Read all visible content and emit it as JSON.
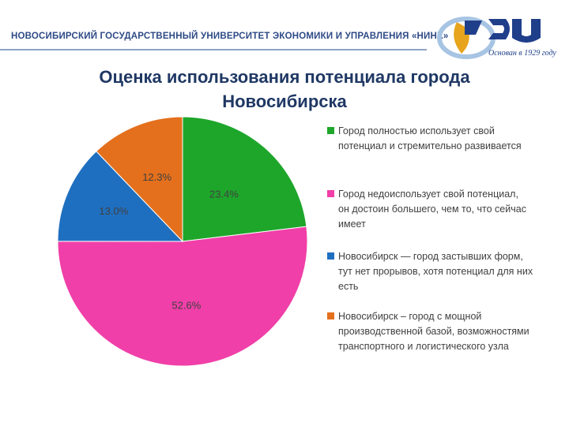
{
  "header": {
    "university": "НОВОСИБИРСКИЙ ГОСУДАРСТВЕННЫЙ УНИВЕРСИТЕТ ЭКОНОМИКИ И УПРАВЛЕНИЯ «НИНХ»",
    "logo_text": "Основан в 1929 году",
    "logo_colors": {
      "blue": "#1f3f8a",
      "gold": "#e7a41c",
      "light_blue": "#a7c4e3"
    }
  },
  "chart_data": {
    "type": "pie",
    "title": "Оценка использования потенциала города Новосибирска",
    "title_lines": [
      "Оценка использования потенциала города",
      "Новосибирска"
    ],
    "start_angle_deg": 0,
    "direction": "clockwise",
    "legend_position": "right",
    "slices": [
      {
        "label": "Город полностью использует свой\nпотенциал и стремительно развивается",
        "value": 23.4,
        "value_label": "23.4%",
        "color": "#1ea62b"
      },
      {
        "label": " Город недоиспользует свой потенциал,\nон достоин большего, чем то, что сейчас\nимеет",
        "value": 52.6,
        "value_label": "52.6%",
        "color": "#f03fa8"
      },
      {
        "label": "Новосибирск — город застывших форм,\nтут нет прорывов, хотя потенциал для них\nесть",
        "value": 13.0,
        "value_label": "13.0%",
        "color": "#1f6fc0"
      },
      {
        "label": "Новосибирск – город с мощной\nпроизводственной базой, возможностями\nтранспортного и логистического узла",
        "value": 12.3,
        "value_label": "12.3%",
        "color": "#e4701d"
      }
    ]
  }
}
